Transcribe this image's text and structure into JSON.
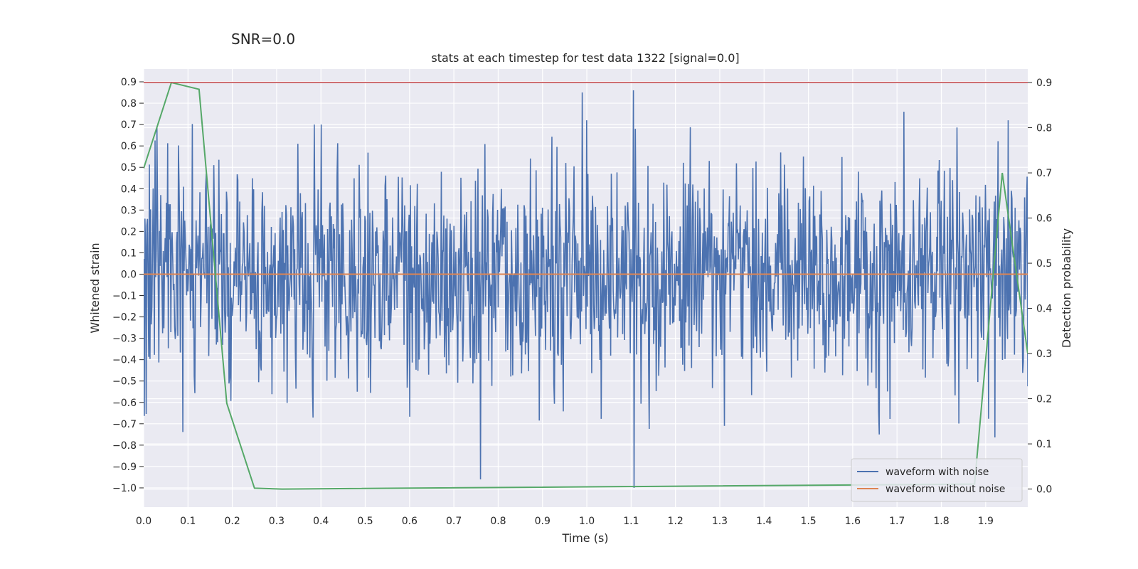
{
  "suptitle": "SNR=0.0",
  "chart_data": {
    "type": "line",
    "title": "stats at each timestep for test data 1322 [signal=0.0]",
    "xlabel": "Time (s)",
    "ylabel": "Whitened strain",
    "y2label": "Detection probability",
    "xlim": [
      0.0,
      1.995
    ],
    "ylim": [
      -1.09,
      0.96
    ],
    "y2lim": [
      -0.04,
      0.93
    ],
    "xticks": [
      "0.0",
      "0.1",
      "0.2",
      "0.3",
      "0.4",
      "0.5",
      "0.6",
      "0.7",
      "0.8",
      "0.9",
      "1.0",
      "1.1",
      "1.2",
      "1.3",
      "1.4",
      "1.5",
      "1.6",
      "1.7",
      "1.8",
      "1.9"
    ],
    "yticks": [
      "0.9",
      "0.8",
      "0.7",
      "0.6",
      "0.5",
      "0.4",
      "0.3",
      "0.2",
      "0.1",
      "0.0",
      "-0.1",
      "-0.2",
      "-0.3",
      "-0.4",
      "-0.5",
      "-0.6",
      "-0.7",
      "-0.8",
      "-0.9",
      "-1.0"
    ],
    "y2ticks": [
      "0.9",
      "0.8",
      "0.7",
      "0.6",
      "0.5",
      "0.4",
      "0.3",
      "0.2",
      "0.1",
      "0.0"
    ],
    "grid": true,
    "legend_position": "lower-right",
    "threshold_line": {
      "value": 0.9,
      "axis": "y2",
      "color": "#c44e52"
    },
    "series": [
      {
        "name": "waveform with noise",
        "color": "#4c72b0",
        "axis": "y",
        "generated": {
          "kind": "noise",
          "n": 1400,
          "std": 0.25,
          "seed": 1322
        },
        "spikes": [
          [
            0.99,
            0.85
          ],
          [
            1.105,
            0.86
          ],
          [
            1.106,
            -1.0
          ],
          [
            0.76,
            -0.96
          ],
          [
            0.03,
            0.69
          ],
          [
            0.385,
            0.7
          ],
          [
            0.4,
            0.7
          ],
          [
            1.11,
            0.68
          ],
          [
            1.715,
            0.76
          ],
          [
            1.31,
            -0.71
          ],
          [
            1.66,
            -0.75
          ]
        ]
      },
      {
        "name": "waveform without noise",
        "color": "#dd8452",
        "axis": "y",
        "x": [
          0.0,
          1.995
        ],
        "values": [
          0.0,
          0.0
        ]
      },
      {
        "name": "",
        "color": "#55a868",
        "axis": "y2",
        "x": [
          0.0,
          0.0625,
          0.125,
          0.1875,
          0.25,
          0.3125,
          1.875,
          1.9375,
          1.995
        ],
        "values": [
          0.71,
          0.9,
          0.885,
          0.19,
          0.002,
          0.0,
          0.011,
          0.7,
          0.3
        ]
      }
    ]
  }
}
